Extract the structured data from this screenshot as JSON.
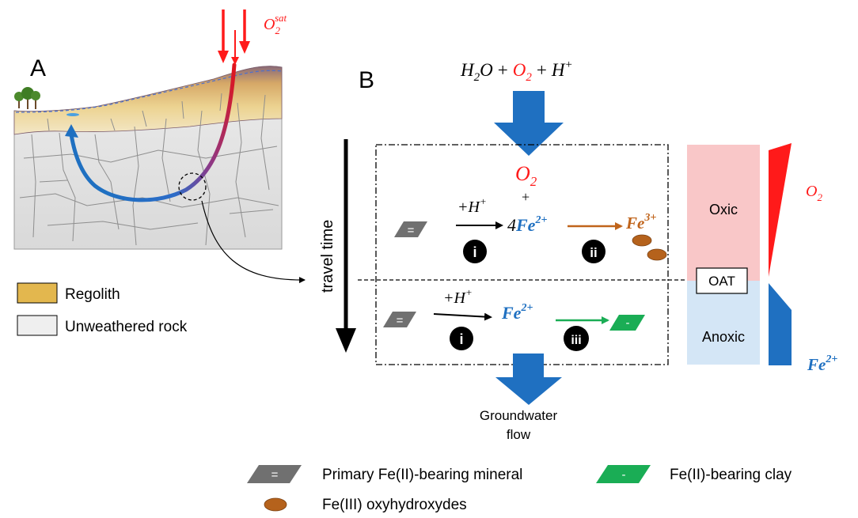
{
  "panel_a": {
    "label": "A",
    "o2_sat": {
      "base": "O",
      "sub": "2",
      "sup": "sat"
    },
    "legend": [
      {
        "text": "Regolith",
        "color": "#e3b74e"
      },
      {
        "text": "Unweathered rock",
        "color": "#efefef"
      }
    ]
  },
  "panel_b": {
    "label": "B",
    "reaction_top": {
      "h2o": "H",
      "h2o_sub": "2",
      "h2o_o": "O",
      "plus1": "+",
      "o2": "O",
      "o2_sub": "2",
      "plus2": "+",
      "hplus": "H",
      "hplus_sup": "+"
    },
    "o2_center": {
      "base": "O",
      "sub": "2"
    },
    "plus_sign": "+",
    "travel_time": "travel time",
    "oxic_row": {
      "mineral_symbol": "=",
      "reaction_label": "+H",
      "reaction_sup": "+",
      "step_i": "i",
      "fe2_coef": "4",
      "fe2_base": "Fe",
      "fe2_sup": "2+",
      "step_ii": "ii",
      "fe3_base": "Fe",
      "fe3_sup": "3+"
    },
    "anoxic_row": {
      "mineral_symbol": "=",
      "reaction_label": "+H",
      "reaction_sup": "+",
      "step_i": "i",
      "fe2_base": "Fe",
      "fe2_sup": "2+",
      "step_iii": "iii",
      "clay_symbol": "-"
    },
    "groundwater_flow": [
      "Groundwater",
      "flow"
    ],
    "zones": {
      "oxic": "Oxic",
      "oat": "OAT",
      "anoxic": "Anoxic"
    },
    "profile_labels": {
      "o2_base": "O",
      "o2_sub": "2",
      "fe_base": "Fe",
      "fe_sup": "2+"
    }
  },
  "legend_bottom": [
    {
      "symbol": "=",
      "text": "Primary Fe(II)-bearing mineral",
      "color": "#707070"
    },
    {
      "symbol": "-",
      "text": "Fe(II)-bearing clay",
      "color": "#1aad55"
    },
    {
      "symbol": "",
      "text": "Fe(III) oxyhydroxydes",
      "color": "#b5621c"
    }
  ],
  "colors": {
    "o2_red": "#ff1a1a",
    "fe2_blue": "#1f70c1",
    "fe3_brown": "#c0641b",
    "arrow_blue": "#1f70c1",
    "oxic_fill": "#f9c7c8",
    "anoxic_fill": "#d4e6f6",
    "clay_green": "#1aad55",
    "mineral_gray": "#707070"
  }
}
